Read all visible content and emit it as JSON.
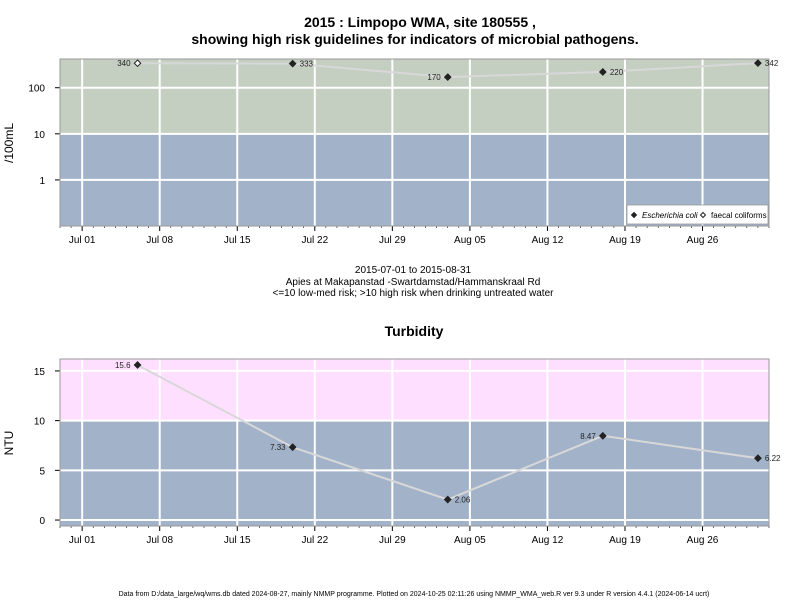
{
  "header": {
    "title_line1": "2015 : Limpopo WMA, site 180555 ,",
    "title_line2": "showing high risk guidelines for indicators of microbial pathogens."
  },
  "caption": {
    "date_range": "2015-07-01 to 2015-08-31",
    "site": "Apies at Makapanstad -Swartdamstad/Hammanskraal Rd",
    "risk_note": "<=10 low-med risk; >10 high risk when drinking untreated water"
  },
  "footer": {
    "text": "Data from D:/data_large/wq/wms.db dated 2024-08-27, mainly NMMP programme. Plotted on 2024-10-25 02:11:26 using NMMP_WMA_web.R ver 9.3 under R version 4.4.1 (2024-06-14 ucrt)"
  },
  "colors": {
    "low_band": "#a2b2c9",
    "high_band_micro": "#c4cfc2",
    "high_band_turb": "#ffdfff",
    "line": "#d8d8d8",
    "grid": "#ffffff"
  },
  "chart_data": [
    {
      "type": "line",
      "title": "",
      "xlabel": "",
      "ylabel": "/100mL",
      "yscale": "log",
      "ylim": [
        0.1,
        420
      ],
      "y_ticks": [
        1,
        10,
        100
      ],
      "y_tick_labels": [
        "1",
        "10",
        "100"
      ],
      "threshold": 10,
      "x_tick_labels": [
        "Jul 01",
        "Jul 08",
        "Jul 15",
        "Jul 22",
        "Jul 29",
        "Aug 05",
        "Aug 12",
        "Aug 19",
        "Aug 26"
      ],
      "x_ticks": [
        "2015-07-01",
        "2015-07-08",
        "2015-07-15",
        "2015-07-22",
        "2015-07-29",
        "2015-08-05",
        "2015-08-12",
        "2015-08-19",
        "2015-08-26"
      ],
      "xlim": [
        "2015-06-29",
        "2015-09-01"
      ],
      "legend": {
        "position": "bottom-right",
        "entries": [
          "Escherichia coli",
          "faecal coliforms"
        ]
      },
      "series": [
        {
          "name": "Escherichia coli",
          "marker": "filled-diamond",
          "x": [
            "2015-07-20",
            "2015-08-03",
            "2015-08-17",
            "2015-08-31"
          ],
          "values": [
            333,
            170,
            220,
            342
          ],
          "labels": [
            "333",
            "170",
            "220",
            "342"
          ],
          "label_side": [
            "right",
            "left",
            "right",
            "right"
          ]
        },
        {
          "name": "faecal coliforms",
          "marker": "open-diamond",
          "x": [
            "2015-07-06"
          ],
          "values": [
            340
          ],
          "labels": [
            "340"
          ],
          "label_side": [
            "left"
          ]
        }
      ]
    },
    {
      "type": "line",
      "title": "Turbidity",
      "xlabel": "",
      "ylabel": "NTU",
      "yscale": "linear",
      "ylim": [
        -0.6,
        16.2
      ],
      "y_ticks": [
        0,
        5,
        10,
        15
      ],
      "y_tick_labels": [
        "0",
        "5",
        "10",
        "15"
      ],
      "threshold": 10,
      "x_tick_labels": [
        "Jul 01",
        "Jul 08",
        "Jul 15",
        "Jul 22",
        "Jul 29",
        "Aug 05",
        "Aug 12",
        "Aug 19",
        "Aug 26"
      ],
      "x_ticks": [
        "2015-07-01",
        "2015-07-08",
        "2015-07-15",
        "2015-07-22",
        "2015-07-29",
        "2015-08-05",
        "2015-08-12",
        "2015-08-19",
        "2015-08-26"
      ],
      "xlim": [
        "2015-06-29",
        "2015-09-01"
      ],
      "series": [
        {
          "marker": "filled-diamond",
          "x": [
            "2015-07-06",
            "2015-07-20",
            "2015-08-03",
            "2015-08-17",
            "2015-08-31"
          ],
          "values": [
            15.6,
            7.33,
            2.06,
            8.47,
            6.22
          ],
          "labels": [
            "15.6",
            "7.33",
            "2.06",
            "8.47",
            "6.22"
          ],
          "label_side": [
            "left",
            "left",
            "right",
            "left",
            "right"
          ]
        }
      ]
    }
  ]
}
